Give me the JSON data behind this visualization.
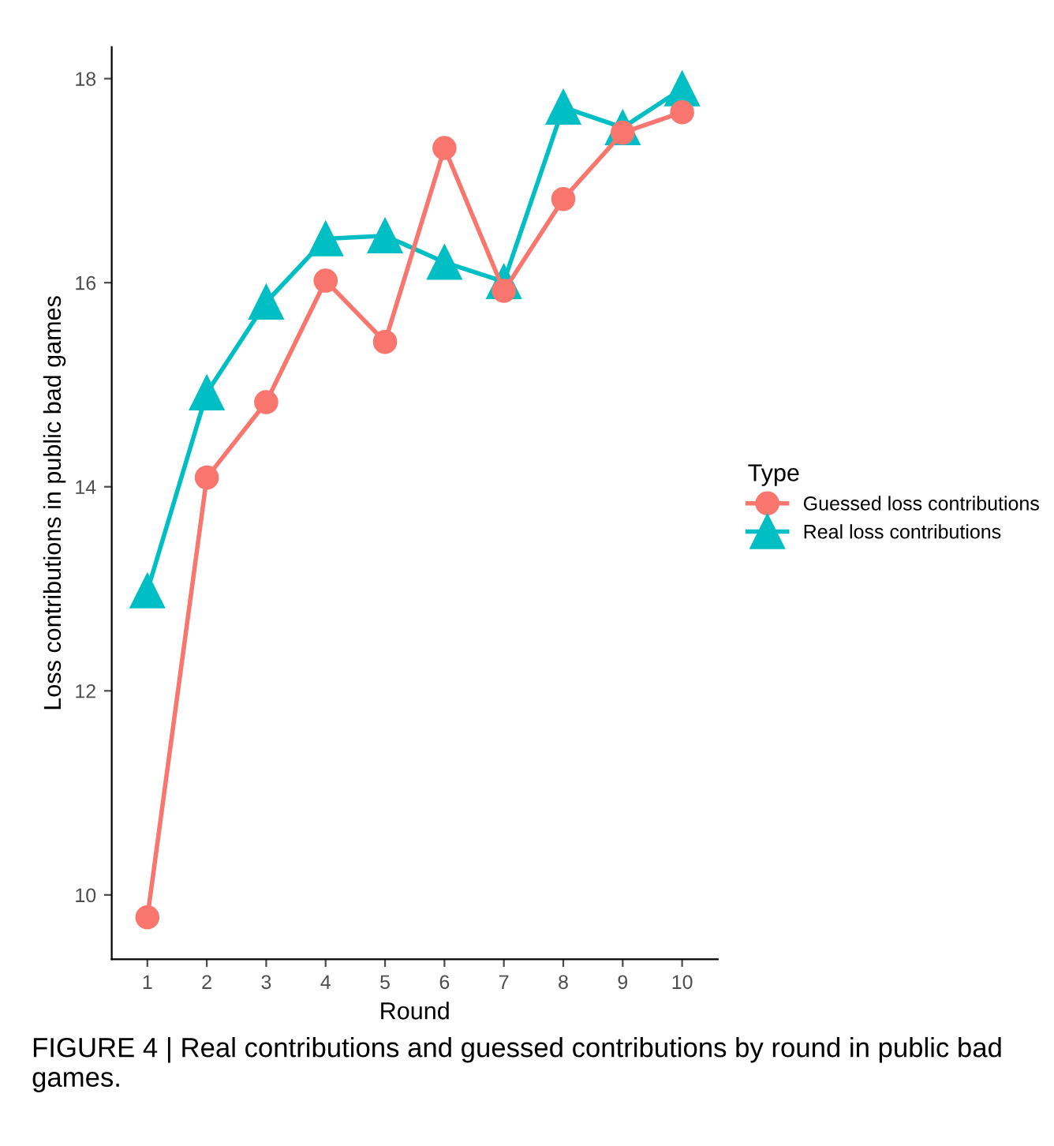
{
  "chart_data": {
    "type": "line",
    "xlabel": "Round",
    "ylabel": "Loss contributions in public bad games",
    "legend_title": "Type",
    "legend": "right",
    "categories": [
      "1",
      "2",
      "3",
      "4",
      "5",
      "6",
      "7",
      "8",
      "9",
      "10"
    ],
    "series": [
      {
        "name": "Guessed loss contributions",
        "color": "#f8766d",
        "marker": "circle",
        "values": [
          9.78,
          14.09,
          14.83,
          16.02,
          15.42,
          17.32,
          15.92,
          16.82,
          17.47,
          17.67
        ]
      },
      {
        "name": "Real loss contributions",
        "color": "#00bfc4",
        "marker": "triangle",
        "values": [
          12.98,
          14.92,
          15.81,
          16.43,
          16.46,
          16.2,
          16.01,
          17.72,
          17.52,
          17.9
        ]
      }
    ],
    "ylim": [
      9.37,
      18.31
    ],
    "yticks": [
      10,
      12,
      14,
      16,
      18
    ],
    "grid": false,
    "line_style": "solid",
    "annotations": [
      "FIGURE 4 | Real contributions and guessed contributions by round in public bad games."
    ]
  }
}
